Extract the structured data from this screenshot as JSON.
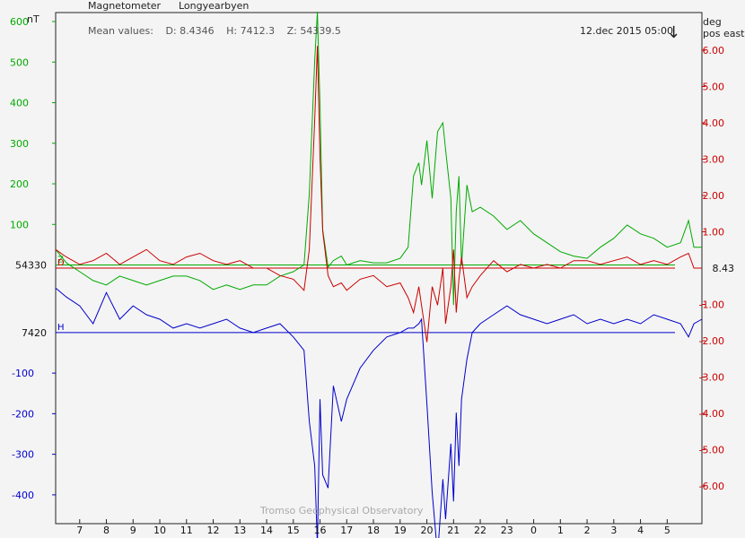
{
  "header": {
    "instrument": "Magnetometer",
    "station": "Longyearbyen",
    "mean_prefix": "Mean values:",
    "mean_d": "D: 8.4346",
    "mean_h": "H: 7412.3",
    "mean_z": "Z: 54339.5",
    "timestamp": "12.dec 2015 05:00",
    "now_arrow": "↓",
    "unit_left": "nT",
    "unit_right_1": "deg",
    "unit_right_2": "pos east",
    "credit": "Tromso Geophysical Observatory"
  },
  "chart_data": {
    "type": "line",
    "title": "Magnetometer Longyearbyen",
    "x_ticks": [
      "7",
      "8",
      "9",
      "10",
      "11",
      "12",
      "13",
      "14",
      "15",
      "16",
      "17",
      "18",
      "19",
      "20",
      "21",
      "22",
      "23",
      "0",
      "1",
      "2",
      "3",
      "4",
      "5"
    ],
    "x_start_hour": 6.1,
    "x_end_hour": 30.3,
    "left_axis": {
      "unit": "nT",
      "ticks_above": [
        600,
        500,
        400,
        300,
        200,
        100
      ],
      "ticks_below": [
        -100,
        -200,
        -300,
        -400
      ],
      "range": [
        -480,
        670
      ]
    },
    "right_axis": {
      "unit": "deg pos east",
      "ticks": [
        "6.00",
        "5.00",
        "4.00",
        "3.00",
        "2.00",
        "1.00",
        "-1.00",
        "-2.00",
        "-3.00",
        "-4.00",
        "-5.00",
        "-6.00"
      ],
      "range": [
        -6.9,
        6.9
      ]
    },
    "baselines": {
      "Z": {
        "value": 54330,
        "color": "#00aa00",
        "label": "54330",
        "letter": "Z"
      },
      "D": {
        "value": 8.43,
        "color": "#cc0000",
        "label": "8.43",
        "letter": "D"
      },
      "H": {
        "value": 7420,
        "color": "#0000cc",
        "label": "7420",
        "letter": "H"
      }
    },
    "series": [
      {
        "name": "Z",
        "color": "#00aa00",
        "hours": [
          6.1,
          6.5,
          7.0,
          7.5,
          8.0,
          8.5,
          9.0,
          9.5,
          10.0,
          10.5,
          11.0,
          11.5,
          12.0,
          12.5,
          13.0,
          13.5,
          14.0,
          14.5,
          15.0,
          15.4,
          15.6,
          15.8,
          15.9,
          16.0,
          16.1,
          16.3,
          16.5,
          16.8,
          17.0,
          17.5,
          18.0,
          18.5,
          19.0,
          19.3,
          19.5,
          19.7,
          19.8,
          20.0,
          20.2,
          20.4,
          20.6,
          20.7,
          20.9,
          21.0,
          21.1,
          21.2,
          21.3,
          21.5,
          21.7,
          22.0,
          22.5,
          23.0,
          23.5,
          24.0,
          24.5,
          25.0,
          25.5,
          26.0,
          26.5,
          27.0,
          27.5,
          28.0,
          28.5,
          29.0,
          29.5,
          29.8,
          30.0,
          30.3
        ],
        "values_nT": [
          35,
          5,
          -15,
          -35,
          -45,
          -25,
          -35,
          -45,
          -35,
          -25,
          -25,
          -35,
          -55,
          -45,
          -55,
          -45,
          -45,
          -25,
          -15,
          0,
          160,
          460,
          570,
          360,
          80,
          -5,
          10,
          20,
          0,
          10,
          5,
          5,
          15,
          40,
          200,
          230,
          180,
          280,
          150,
          300,
          320,
          260,
          150,
          -90,
          120,
          200,
          0,
          180,
          120,
          130,
          110,
          80,
          100,
          70,
          50,
          30,
          20,
          15,
          40,
          60,
          90,
          70,
          60,
          40,
          50,
          100,
          40,
          40
        ]
      },
      {
        "name": "D",
        "color": "#cc0000",
        "hours": [
          6.1,
          6.5,
          7.0,
          7.5,
          8.0,
          8.5,
          9.0,
          9.5,
          10.0,
          10.5,
          11.0,
          11.5,
          12.0,
          12.5,
          13.0,
          13.5,
          14.0,
          14.5,
          15.0,
          15.4,
          15.6,
          15.8,
          15.9,
          16.0,
          16.1,
          16.3,
          16.5,
          16.8,
          17.0,
          17.5,
          18.0,
          18.5,
          19.0,
          19.3,
          19.5,
          19.7,
          19.8,
          20.0,
          20.2,
          20.4,
          20.6,
          20.7,
          20.9,
          21.0,
          21.1,
          21.2,
          21.3,
          21.5,
          21.7,
          22.0,
          22.5,
          23.0,
          23.5,
          24.0,
          24.5,
          25.0,
          25.5,
          26.0,
          26.5,
          27.0,
          27.5,
          28.0,
          28.5,
          29.0,
          29.5,
          29.8,
          30.0,
          30.3
        ],
        "values_deg": [
          0.5,
          0.3,
          0.1,
          0.2,
          0.4,
          0.1,
          0.3,
          0.5,
          0.2,
          0.1,
          0.3,
          0.4,
          0.2,
          0.1,
          0.2,
          0.0,
          0.0,
          -0.2,
          -0.3,
          -0.6,
          0.5,
          4.0,
          6.0,
          3.0,
          1.0,
          -0.2,
          -0.5,
          -0.4,
          -0.6,
          -0.3,
          -0.2,
          -0.5,
          -0.4,
          -0.8,
          -1.2,
          -0.5,
          -1.0,
          -2.0,
          -0.5,
          -1.0,
          0.0,
          -1.5,
          -0.5,
          0.5,
          -1.2,
          -0.3,
          0.3,
          -0.8,
          -0.5,
          -0.2,
          0.2,
          -0.1,
          0.1,
          0.0,
          0.1,
          0.0,
          0.2,
          0.2,
          0.1,
          0.2,
          0.3,
          0.1,
          0.2,
          0.1,
          0.3,
          0.4,
          0.0,
          0.0
        ]
      },
      {
        "name": "H",
        "color": "#0000cc",
        "hours": [
          6.1,
          6.5,
          7.0,
          7.5,
          8.0,
          8.5,
          9.0,
          9.5,
          10.0,
          10.5,
          11.0,
          11.5,
          12.0,
          12.5,
          13.0,
          13.5,
          14.0,
          14.5,
          15.0,
          15.4,
          15.6,
          15.8,
          15.9,
          16.0,
          16.1,
          16.3,
          16.5,
          16.8,
          17.0,
          17.5,
          18.0,
          18.5,
          19.0,
          19.3,
          19.5,
          19.7,
          19.8,
          20.0,
          20.2,
          20.4,
          20.6,
          20.7,
          20.9,
          21.0,
          21.1,
          21.2,
          21.3,
          21.5,
          21.7,
          22.0,
          22.5,
          23.0,
          23.5,
          24.0,
          24.5,
          25.0,
          25.5,
          26.0,
          26.5,
          27.0,
          27.5,
          28.0,
          28.5,
          29.0,
          29.5,
          29.8,
          30.0,
          30.3
        ],
        "values_nT": [
          100,
          80,
          60,
          20,
          90,
          30,
          60,
          40,
          30,
          10,
          20,
          10,
          20,
          30,
          10,
          0,
          10,
          20,
          -10,
          -40,
          -200,
          -300,
          -480,
          -150,
          -320,
          -350,
          -120,
          -200,
          -150,
          -80,
          -40,
          -10,
          0,
          10,
          10,
          20,
          30,
          -160,
          -360,
          -500,
          -330,
          -420,
          -250,
          -380,
          -180,
          -300,
          -150,
          -60,
          0,
          20,
          40,
          60,
          40,
          30,
          20,
          30,
          40,
          20,
          30,
          20,
          30,
          20,
          40,
          30,
          20,
          -10,
          20,
          30
        ]
      }
    ]
  }
}
